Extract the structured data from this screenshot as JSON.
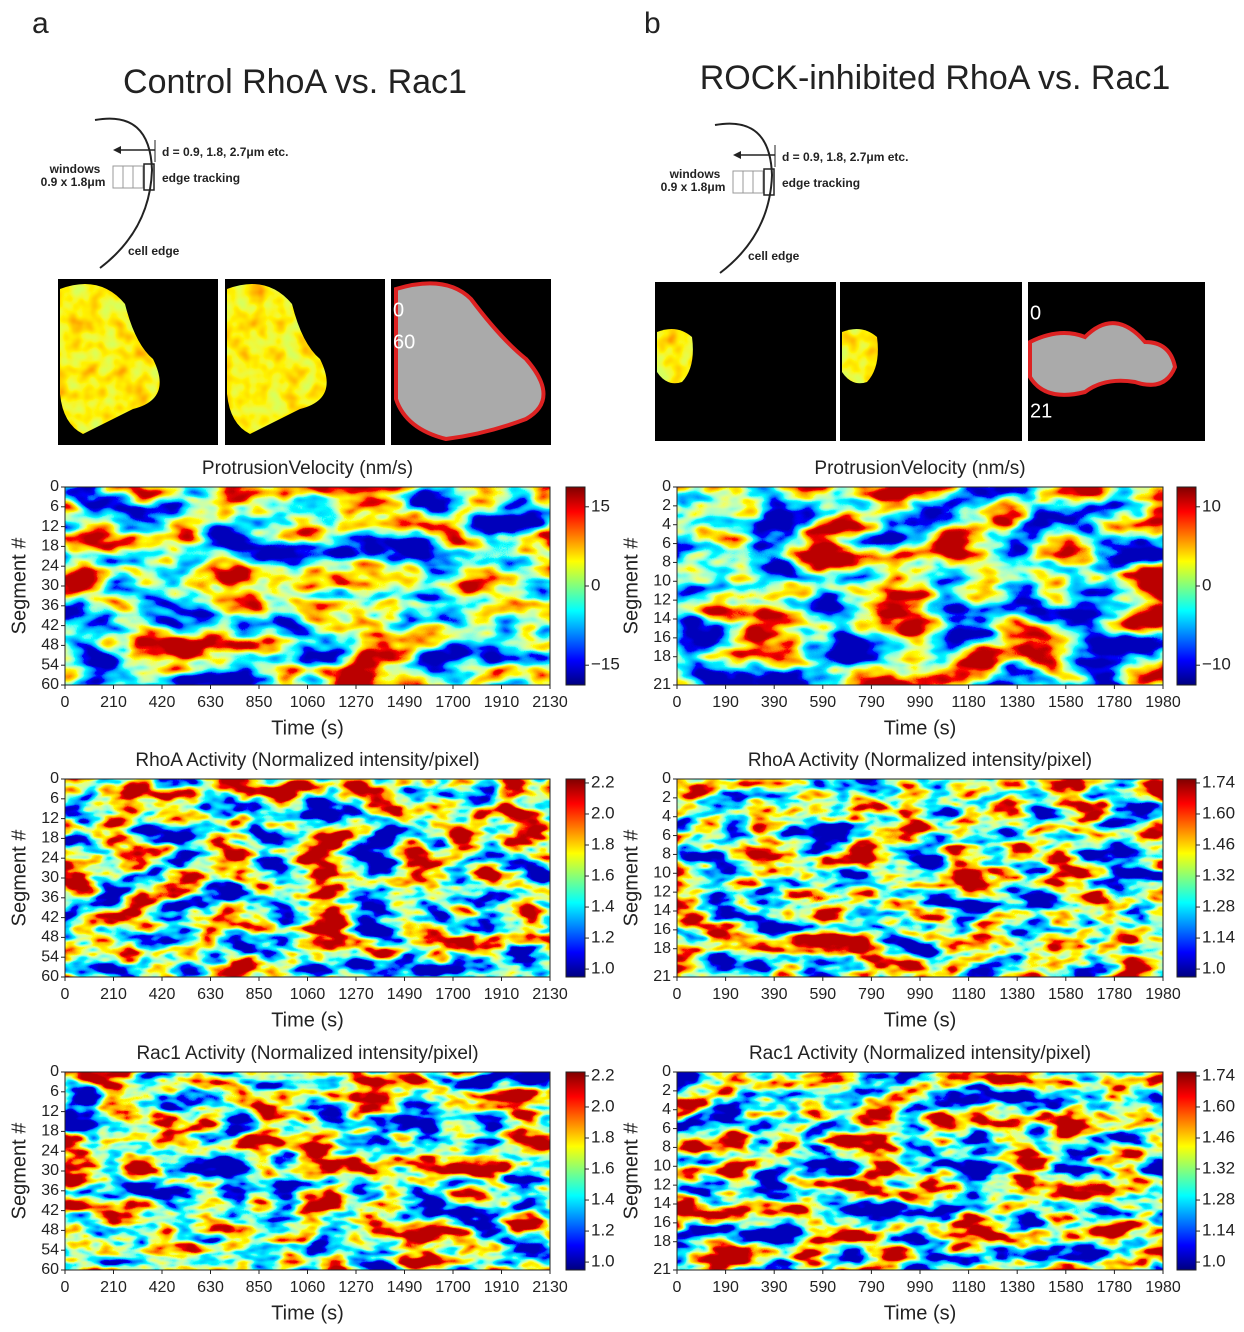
{
  "panels": [
    {
      "label": "a",
      "title": "Control RhoA vs. Rac1",
      "schematic": {
        "distance": "d = 0.9, 1.8, 2.7μm etc.",
        "windows": "windows",
        "window_size": "0.9 x 1.8μm",
        "tracking": "edge tracking",
        "edge": "cell edge"
      },
      "micrograph_labels": [
        "0",
        "60"
      ],
      "heatmaps": [
        {
          "title": "ProtrusionVelocity (nm/s)",
          "ylabel": "Segment #",
          "xlabel": "Time (s)",
          "xticks": [
            "0",
            "210",
            "420",
            "630",
            "850",
            "1060",
            "1270",
            "1490",
            "1700",
            "1910",
            "2130"
          ],
          "yticks": [
            "0",
            "6",
            "12",
            "18",
            "24",
            "30",
            "36",
            "42",
            "48",
            "54",
            "60"
          ],
          "colorbar_ticks": [
            "15",
            "0",
            "−15"
          ]
        },
        {
          "title": "RhoA Activity (Normalized intensity/pixel)",
          "ylabel": "Segment #",
          "xlabel": "Time (s)",
          "xticks": [
            "0",
            "210",
            "420",
            "630",
            "850",
            "1060",
            "1270",
            "1490",
            "1700",
            "1910",
            "2130"
          ],
          "yticks": [
            "0",
            "6",
            "12",
            "18",
            "24",
            "30",
            "36",
            "42",
            "48",
            "54",
            "60"
          ],
          "colorbar_ticks": [
            "2.2",
            "2.0",
            "1.8",
            "1.6",
            "1.4",
            "1.2",
            "1.0"
          ]
        },
        {
          "title": "Rac1 Activity (Normalized intensity/pixel)",
          "ylabel": "Segment #",
          "xlabel": "Time (s)",
          "xticks": [
            "0",
            "210",
            "420",
            "630",
            "850",
            "1060",
            "1270",
            "1490",
            "1700",
            "1910",
            "2130"
          ],
          "yticks": [
            "0",
            "6",
            "12",
            "18",
            "24",
            "30",
            "36",
            "42",
            "48",
            "54",
            "60"
          ],
          "colorbar_ticks": [
            "2.2",
            "2.0",
            "1.8",
            "1.6",
            "1.4",
            "1.2",
            "1.0"
          ]
        }
      ]
    },
    {
      "label": "b",
      "title": "ROCK-inhibited RhoA vs. Rac1",
      "schematic": {
        "distance": "d = 0.9, 1.8, 2.7μm etc.",
        "windows": "windows",
        "window_size": "0.9 x 1.8μm",
        "tracking": "edge tracking",
        "edge": "cell edge"
      },
      "micrograph_labels": [
        "0",
        "21"
      ],
      "heatmaps": [
        {
          "title": "ProtrusionVelocity (nm/s)",
          "ylabel": "Segment #",
          "xlabel": "Time (s)",
          "xticks": [
            "0",
            "190",
            "390",
            "590",
            "790",
            "990",
            "1180",
            "1380",
            "1580",
            "1780",
            "1980"
          ],
          "yticks": [
            "0",
            "2",
            "4",
            "6",
            "8",
            "10",
            "12",
            "14",
            "16",
            "18",
            "21"
          ],
          "colorbar_ticks": [
            "10",
            "0",
            "−10"
          ]
        },
        {
          "title": "RhoA Activity (Normalized intensity/pixel)",
          "ylabel": "Segment #",
          "xlabel": "Time (s)",
          "xticks": [
            "0",
            "190",
            "390",
            "590",
            "790",
            "990",
            "1180",
            "1380",
            "1580",
            "1780",
            "1980"
          ],
          "yticks": [
            "0",
            "2",
            "4",
            "6",
            "8",
            "10",
            "12",
            "14",
            "16",
            "18",
            "21"
          ],
          "colorbar_ticks": [
            "1.74",
            "1.60",
            "1.46",
            "1.32",
            "1.28",
            "1.14",
            "1.0"
          ]
        },
        {
          "title": "Rac1 Activity (Normalized intensity/pixel)",
          "ylabel": "Segment #",
          "xlabel": "Time (s)",
          "xticks": [
            "0",
            "190",
            "390",
            "590",
            "790",
            "990",
            "1180",
            "1380",
            "1580",
            "1780",
            "1980"
          ],
          "yticks": [
            "0",
            "2",
            "4",
            "6",
            "8",
            "10",
            "12",
            "14",
            "16",
            "18",
            "21"
          ],
          "colorbar_ticks": [
            "1.74",
            "1.60",
            "1.46",
            "1.32",
            "1.28",
            "1.14",
            "1.0"
          ]
        }
      ]
    }
  ]
}
